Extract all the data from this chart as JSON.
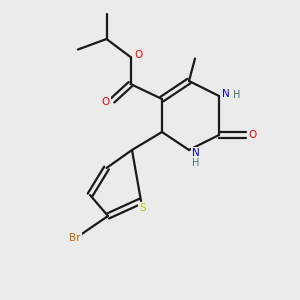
{
  "bg_color": "#ebebeb",
  "bond_color": "#1a1a1a",
  "bond_lw": 1.6,
  "atom_colors": {
    "O": "#ff0000",
    "N": "#0000ee",
    "S": "#bbbb00",
    "Br": "#cc6600",
    "H": "#447777",
    "C": "#1a1a1a"
  },
  "figsize": [
    3.0,
    3.0
  ],
  "dpi": 100
}
